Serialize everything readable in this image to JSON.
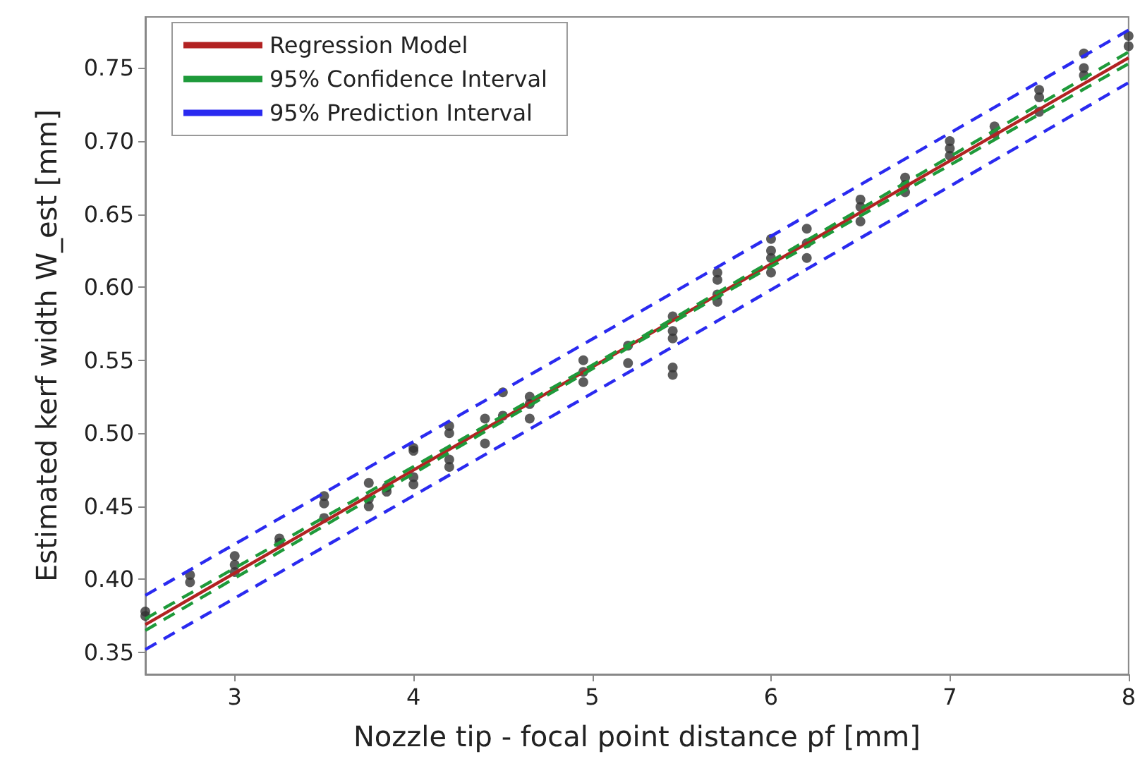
{
  "chart_data": {
    "type": "scatter",
    "xlabel": "Nozzle tip - focal point distance pf [mm]",
    "ylabel": "Estimated kerf width W_est [mm]",
    "xlim": [
      2.5,
      8
    ],
    "xticks": [
      3,
      4,
      5,
      6,
      7,
      8
    ],
    "ylim": [
      0.335,
      0.785
    ],
    "yticks": [
      0.35,
      {
        "value": 0.4,
        "label": "0.40"
      },
      0.45,
      {
        "value": 0.5,
        "label": "0.50"
      },
      0.55,
      {
        "value": 0.6,
        "label": "0.60"
      },
      0.65,
      {
        "value": 0.7,
        "label": "0.70"
      },
      0.75
    ],
    "grid": false,
    "legend": "top left",
    "series": [
      {
        "color": "#333333",
        "marker": "circle",
        "x": [
          2.5,
          2.5,
          2.75,
          2.75,
          3,
          3,
          3,
          3.25,
          3.25,
          3.5,
          3.5,
          3.5,
          3.75,
          3.75,
          3.75,
          3.85,
          3.85,
          4,
          4,
          4,
          4,
          4.2,
          4.2,
          4.2,
          4.2,
          4.4,
          4.4,
          4.5,
          4.5,
          4.65,
          4.65,
          4.65,
          4.95,
          4.95,
          4.95,
          5.2,
          5.2,
          5.45,
          5.45,
          5.45,
          5.45,
          5.45,
          5.7,
          5.7,
          5.7,
          5.7,
          6,
          6,
          6,
          6,
          6.2,
          6.2,
          6.2,
          6.5,
          6.5,
          6.5,
          6.75,
          6.75,
          6.75,
          7,
          7,
          7,
          7.25,
          7.25,
          7.5,
          7.5,
          7.5,
          7.75,
          7.75,
          7.75,
          8,
          8
        ],
        "values": [
          0.375,
          0.378,
          0.398,
          0.403,
          0.405,
          0.41,
          0.416,
          0.425,
          0.428,
          0.442,
          0.452,
          0.457,
          0.45,
          0.455,
          0.466,
          0.46,
          0.463,
          0.465,
          0.47,
          0.488,
          0.49,
          0.477,
          0.482,
          0.5,
          0.505,
          0.493,
          0.51,
          0.512,
          0.528,
          0.51,
          0.52,
          0.525,
          0.535,
          0.542,
          0.55,
          0.548,
          0.56,
          0.54,
          0.545,
          0.565,
          0.57,
          0.58,
          0.59,
          0.595,
          0.605,
          0.61,
          0.61,
          0.62,
          0.625,
          0.633,
          0.62,
          0.63,
          0.64,
          0.645,
          0.655,
          0.66,
          0.665,
          0.67,
          0.675,
          0.69,
          0.695,
          0.7,
          0.705,
          0.71,
          0.72,
          0.73,
          0.735,
          0.745,
          0.75,
          0.76,
          0.765,
          0.772
        ]
      },
      {
        "type": "line",
        "name": "Regression Model",
        "color": "#b22222",
        "line_style": "solid",
        "marker": "none",
        "x": [
          2.5,
          8
        ],
        "values": [
          0.369,
          0.757
        ]
      },
      {
        "type": "line",
        "name": "95% Confidence Interval",
        "color": "#1e9a3a",
        "line_style": "dashed",
        "marker": "none",
        "x": [
          2.5,
          5.25,
          8
        ],
        "values": [
          0.373,
          0.564,
          0.761
        ]
      },
      {
        "type": "line",
        "color": "#1e9a3a",
        "line_style": "dashed",
        "marker": "none",
        "x": [
          2.5,
          5.25,
          8
        ],
        "values": [
          0.365,
          0.562,
          0.753
        ]
      },
      {
        "type": "line",
        "name": "95% Prediction Interval",
        "color": "#2a2af0",
        "line_style": "dashed",
        "marker": "none",
        "x": [
          2.5,
          5.25,
          8
        ],
        "values": [
          0.389,
          0.582,
          0.776
        ]
      },
      {
        "type": "line",
        "color": "#2a2af0",
        "line_style": "dashed",
        "marker": "none",
        "x": [
          2.5,
          5.25,
          8
        ],
        "values": [
          0.352,
          0.545,
          0.74
        ]
      }
    ]
  }
}
